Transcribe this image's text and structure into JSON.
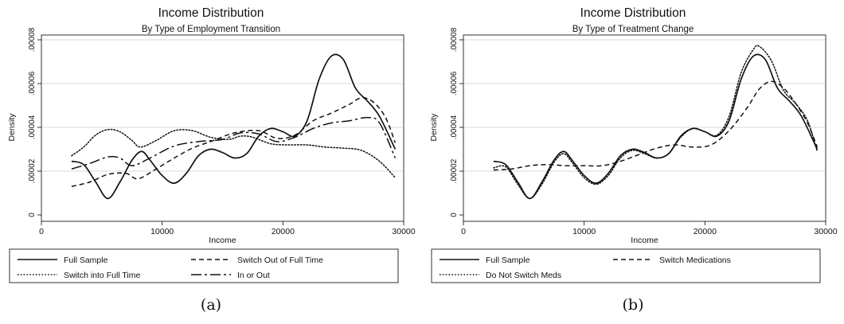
{
  "figure": {
    "colors": {
      "line": "#111111",
      "grid": "#d9d9d9",
      "frame": "#000000"
    }
  },
  "chart_data": [
    {
      "type": "line",
      "panel_caption": "(a)",
      "title": "Income Distribution",
      "subtitle": "By Type of Employment Transition",
      "xlabel": "Income",
      "ylabel": "Density",
      "xlim": [
        0,
        30000
      ],
      "ylim": [
        0,
        8e-05
      ],
      "xticks": [
        0,
        10000,
        20000,
        30000
      ],
      "xtick_labels": [
        "0",
        "10000",
        "20000",
        "30000"
      ],
      "yticks": [
        0,
        2e-05,
        4e-05,
        6e-05,
        8e-05
      ],
      "ytick_labels": [
        "0",
        ".00002",
        ".00004",
        ".00006",
        ".00008"
      ],
      "grid": "horizontal",
      "legend_position": "bottom",
      "legend_columns": 2,
      "series": [
        {
          "name": "Full Sample",
          "dash": "solid",
          "points": [
            [
              2500,
              2.45e-05
            ],
            [
              3500,
              2.3e-05
            ],
            [
              4500,
              1.5e-05
            ],
            [
              5500,
              7.5e-06
            ],
            [
              6500,
              1.5e-05
            ],
            [
              7500,
              2.5e-05
            ],
            [
              8300,
              2.9e-05
            ],
            [
              9000,
              2.5e-05
            ],
            [
              10000,
              1.8e-05
            ],
            [
              11000,
              1.45e-05
            ],
            [
              12000,
              1.9e-05
            ],
            [
              13000,
              2.7e-05
            ],
            [
              14000,
              3e-05
            ],
            [
              15000,
              2.85e-05
            ],
            [
              16000,
              2.6e-05
            ],
            [
              17000,
              2.8e-05
            ],
            [
              18000,
              3.6e-05
            ],
            [
              19000,
              3.95e-05
            ],
            [
              20000,
              3.8e-05
            ],
            [
              21000,
              3.6e-05
            ],
            [
              22000,
              4.3e-05
            ],
            [
              23000,
              6.2e-05
            ],
            [
              24000,
              7.25e-05
            ],
            [
              25000,
              7.1e-05
            ],
            [
              26000,
              5.8e-05
            ],
            [
              27000,
              5.2e-05
            ],
            [
              28000,
              4.5e-05
            ],
            [
              29300,
              3e-05
            ]
          ]
        },
        {
          "name": "Switch Out of Full Time",
          "dash": "short-dash",
          "points": [
            [
              2500,
              1.3e-05
            ],
            [
              4000,
              1.5e-05
            ],
            [
              5500,
              1.85e-05
            ],
            [
              7000,
              1.9e-05
            ],
            [
              8000,
              1.65e-05
            ],
            [
              9500,
              2.1e-05
            ],
            [
              11000,
              2.6e-05
            ],
            [
              12500,
              3.05e-05
            ],
            [
              14000,
              3.35e-05
            ],
            [
              16000,
              3.75e-05
            ],
            [
              18000,
              3.85e-05
            ],
            [
              19500,
              3.5e-05
            ],
            [
              21000,
              3.65e-05
            ],
            [
              22500,
              4.3e-05
            ],
            [
              24000,
              4.65e-05
            ],
            [
              25500,
              5.05e-05
            ],
            [
              26500,
              5.35e-05
            ],
            [
              27500,
              5.15e-05
            ],
            [
              28500,
              4.45e-05
            ],
            [
              29300,
              3.3e-05
            ]
          ]
        },
        {
          "name": "Switch into Full Time",
          "dash": "dotted",
          "points": [
            [
              2500,
              2.7e-05
            ],
            [
              3500,
              3.1e-05
            ],
            [
              4500,
              3.65e-05
            ],
            [
              5500,
              3.9e-05
            ],
            [
              6500,
              3.8e-05
            ],
            [
              7500,
              3.4e-05
            ],
            [
              8200,
              3.1e-05
            ],
            [
              9500,
              3.4e-05
            ],
            [
              11000,
              3.85e-05
            ],
            [
              12500,
              3.85e-05
            ],
            [
              14000,
              3.55e-05
            ],
            [
              15500,
              3.45e-05
            ],
            [
              16500,
              3.6e-05
            ],
            [
              17500,
              3.55e-05
            ],
            [
              19000,
              3.25e-05
            ],
            [
              20500,
              3.2e-05
            ],
            [
              22000,
              3.2e-05
            ],
            [
              23500,
              3.1e-05
            ],
            [
              25000,
              3.05e-05
            ],
            [
              26500,
              2.95e-05
            ],
            [
              28000,
              2.45e-05
            ],
            [
              29300,
              1.7e-05
            ]
          ]
        },
        {
          "name": "In or Out",
          "dash": "long-dash",
          "points": [
            [
              2500,
              2.1e-05
            ],
            [
              4000,
              2.35e-05
            ],
            [
              5500,
              2.65e-05
            ],
            [
              6500,
              2.6e-05
            ],
            [
              7500,
              2.25e-05
            ],
            [
              9000,
              2.6e-05
            ],
            [
              11000,
              3.15e-05
            ],
            [
              13000,
              3.35e-05
            ],
            [
              15000,
              3.45e-05
            ],
            [
              16500,
              3.75e-05
            ],
            [
              18000,
              3.7e-05
            ],
            [
              19500,
              3.35e-05
            ],
            [
              21000,
              3.55e-05
            ],
            [
              22500,
              3.95e-05
            ],
            [
              24000,
              4.2e-05
            ],
            [
              25500,
              4.3e-05
            ],
            [
              27000,
              4.45e-05
            ],
            [
              28000,
              4.2e-05
            ],
            [
              29300,
              2.6e-05
            ]
          ]
        }
      ],
      "legend_order": [
        "Full Sample",
        "Switch Out of Full Time",
        "Switch into Full Time",
        "In or Out"
      ]
    },
    {
      "type": "line",
      "panel_caption": "(b)",
      "title": "Income Distribution",
      "subtitle": "By Type of Treatment Change",
      "xlabel": "Income",
      "ylabel": "Density",
      "xlim": [
        0,
        30000
      ],
      "ylim": [
        0,
        8e-05
      ],
      "xticks": [
        0,
        10000,
        20000,
        30000
      ],
      "xtick_labels": [
        "0",
        "10000",
        "20000",
        "30000"
      ],
      "yticks": [
        0,
        2e-05,
        4e-05,
        6e-05,
        8e-05
      ],
      "ytick_labels": [
        "0",
        ".00002",
        ".00004",
        ".00006",
        ".00008"
      ],
      "grid": "horizontal",
      "legend_position": "bottom",
      "legend_columns": 2,
      "series": [
        {
          "name": "Full Sample",
          "dash": "solid",
          "points": [
            [
              2500,
              2.45e-05
            ],
            [
              3500,
              2.3e-05
            ],
            [
              4500,
              1.5e-05
            ],
            [
              5500,
              7.5e-06
            ],
            [
              6500,
              1.5e-05
            ],
            [
              7500,
              2.5e-05
            ],
            [
              8300,
              2.9e-05
            ],
            [
              9000,
              2.5e-05
            ],
            [
              10000,
              1.8e-05
            ],
            [
              11000,
              1.45e-05
            ],
            [
              12000,
              1.9e-05
            ],
            [
              13000,
              2.7e-05
            ],
            [
              14000,
              3e-05
            ],
            [
              15000,
              2.85e-05
            ],
            [
              16000,
              2.6e-05
            ],
            [
              17000,
              2.8e-05
            ],
            [
              18000,
              3.6e-05
            ],
            [
              19000,
              3.95e-05
            ],
            [
              20000,
              3.8e-05
            ],
            [
              21000,
              3.6e-05
            ],
            [
              22000,
              4.3e-05
            ],
            [
              23000,
              6.2e-05
            ],
            [
              24000,
              7.25e-05
            ],
            [
              25000,
              7.1e-05
            ],
            [
              26000,
              5.8e-05
            ],
            [
              27000,
              5.2e-05
            ],
            [
              28000,
              4.5e-05
            ],
            [
              29300,
              3e-05
            ]
          ]
        },
        {
          "name": "Switch Medications",
          "dash": "short-dash",
          "points": [
            [
              2500,
              2.05e-05
            ],
            [
              4000,
              2.1e-05
            ],
            [
              5500,
              2.25e-05
            ],
            [
              7000,
              2.3e-05
            ],
            [
              8500,
              2.25e-05
            ],
            [
              10000,
              2.25e-05
            ],
            [
              11500,
              2.25e-05
            ],
            [
              13000,
              2.45e-05
            ],
            [
              14500,
              2.75e-05
            ],
            [
              16000,
              3.05e-05
            ],
            [
              17500,
              3.2e-05
            ],
            [
              19000,
              3.1e-05
            ],
            [
              20500,
              3.2e-05
            ],
            [
              22000,
              3.85e-05
            ],
            [
              23500,
              4.9e-05
            ],
            [
              24500,
              5.75e-05
            ],
            [
              25500,
              6.1e-05
            ],
            [
              26500,
              5.8e-05
            ],
            [
              27500,
              5.1e-05
            ],
            [
              28500,
              4.2e-05
            ],
            [
              29300,
              3.1e-05
            ]
          ]
        },
        {
          "name": "Do Not Switch Meds",
          "dash": "dotted",
          "points": [
            [
              2500,
              2.15e-05
            ],
            [
              3500,
              2.2e-05
            ],
            [
              4500,
              1.4e-05
            ],
            [
              5500,
              7.5e-06
            ],
            [
              6500,
              1.4e-05
            ],
            [
              7500,
              2.4e-05
            ],
            [
              8300,
              2.8e-05
            ],
            [
              9000,
              2.4e-05
            ],
            [
              10000,
              1.7e-05
            ],
            [
              11000,
              1.4e-05
            ],
            [
              12000,
              1.8e-05
            ],
            [
              13000,
              2.6e-05
            ],
            [
              14000,
              2.95e-05
            ],
            [
              15000,
              2.8e-05
            ],
            [
              16000,
              2.6e-05
            ],
            [
              17000,
              2.8e-05
            ],
            [
              18000,
              3.55e-05
            ],
            [
              19000,
              3.95e-05
            ],
            [
              20000,
              3.8e-05
            ],
            [
              21000,
              3.65e-05
            ],
            [
              22000,
              4.5e-05
            ],
            [
              23000,
              6.5e-05
            ],
            [
              24000,
              7.55e-05
            ],
            [
              24500,
              7.7e-05
            ],
            [
              25500,
              7.05e-05
            ],
            [
              26500,
              5.7e-05
            ],
            [
              27500,
              5.1e-05
            ],
            [
              28500,
              4.3e-05
            ],
            [
              29300,
              2.9e-05
            ]
          ]
        }
      ],
      "legend_order": [
        "Full Sample",
        "Switch Medications",
        "Do Not Switch Meds"
      ]
    }
  ]
}
